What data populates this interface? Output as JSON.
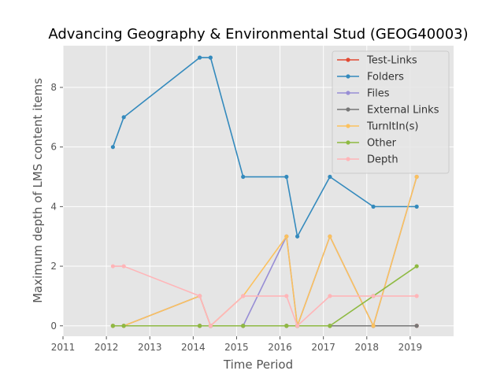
{
  "chart_data": {
    "type": "line",
    "title": "Advancing Geography & Environmental Stud (GEOG40003)",
    "xlabel": "Time Period",
    "ylabel": "Maximum depth of LMS content items",
    "xlim": [
      2011,
      2020
    ],
    "ylim": [
      -0.35,
      9.4
    ],
    "xticks": [
      2011,
      2012,
      2013,
      2014,
      2015,
      2016,
      2017,
      2018,
      2019
    ],
    "yticks": [
      0,
      2,
      4,
      6,
      8
    ],
    "grid": true,
    "legend_position": "top-right",
    "x": [
      2012.15,
      2012.4,
      2014.15,
      2014.4,
      2015.15,
      2016.15,
      2016.4,
      2017.15,
      2018.15,
      2019.15
    ],
    "series": [
      {
        "name": "Test-Links",
        "color": "#E24A33",
        "values": [
          0,
          0,
          0,
          0,
          0,
          0,
          0,
          0,
          0,
          0
        ]
      },
      {
        "name": "Folders",
        "color": "#348ABD",
        "values": [
          6,
          7,
          9,
          9,
          5,
          5,
          3,
          5,
          4,
          4
        ]
      },
      {
        "name": "Files",
        "color": "#988ED5",
        "values": [
          0,
          0,
          1,
          0,
          0,
          3,
          0,
          3,
          0,
          5
        ]
      },
      {
        "name": "External Links",
        "color": "#777777",
        "values": [
          0,
          0,
          0,
          0,
          0,
          0,
          0,
          0,
          0,
          0
        ]
      },
      {
        "name": "TurnItIn(s)",
        "color": "#FBC15E",
        "values": [
          0,
          0,
          1,
          0,
          1,
          3,
          0,
          3,
          0,
          5
        ]
      },
      {
        "name": "Other",
        "color": "#8EBA42",
        "values": [
          0,
          0,
          0,
          0,
          0,
          0,
          0,
          0,
          1,
          2
        ]
      },
      {
        "name": "Depth",
        "color": "#FFB5B8",
        "values": [
          2,
          2,
          1,
          0,
          1,
          1,
          0,
          1,
          1,
          1
        ]
      }
    ]
  }
}
